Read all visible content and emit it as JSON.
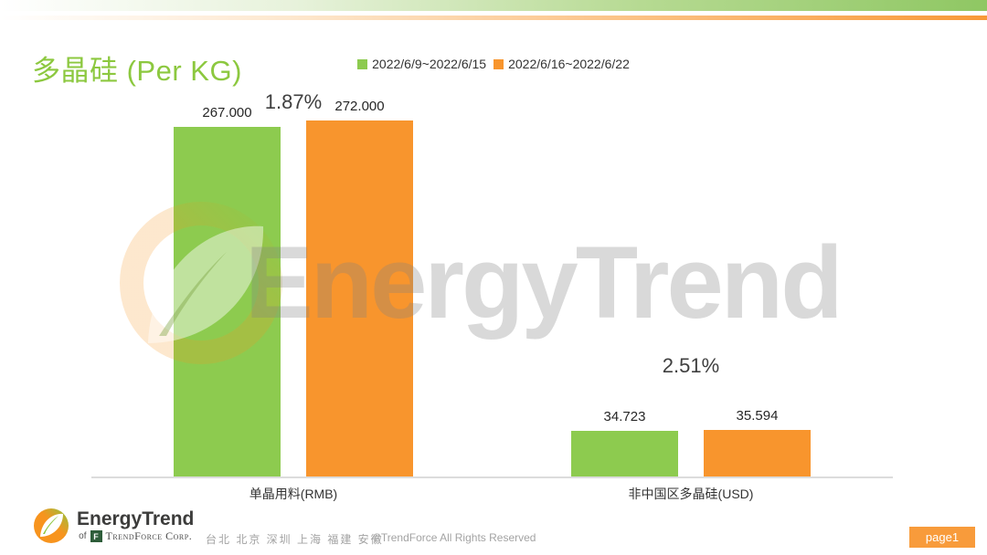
{
  "header": {
    "title": "多晶硅 (Per KG)"
  },
  "watermark": {
    "text": "EnergyTrend"
  },
  "chart_data": {
    "type": "bar",
    "title": "多晶硅 (Per KG)",
    "categories": [
      "单晶用料(RMB)",
      "非中国区多晶硅(USD)"
    ],
    "series": [
      {
        "name": "2022/6/9~2022/6/15",
        "color": "#8dcb4f",
        "values": [
          267.0,
          34.723
        ],
        "labels": [
          "267.000",
          "34.723"
        ]
      },
      {
        "name": "2022/6/16~2022/6/22",
        "color": "#f8952d",
        "values": [
          272.0,
          35.594
        ],
        "labels": [
          "272.000",
          "35.594"
        ]
      }
    ],
    "change_labels": [
      "1.87%",
      "2.51%"
    ],
    "ylim": [
      0,
      290
    ],
    "grid": false,
    "data_labels": true,
    "legend_position": "top-center"
  },
  "footer": {
    "logo_name": "EnergyTrend",
    "logo_of": "of",
    "logo_tf_mark": "F",
    "logo_corp": "TrendForce Corp.",
    "cities": "台北 北京 深圳 上海 福建 安徽",
    "copyright": "©TrendForce All Rights Reserved",
    "page": "page1"
  }
}
